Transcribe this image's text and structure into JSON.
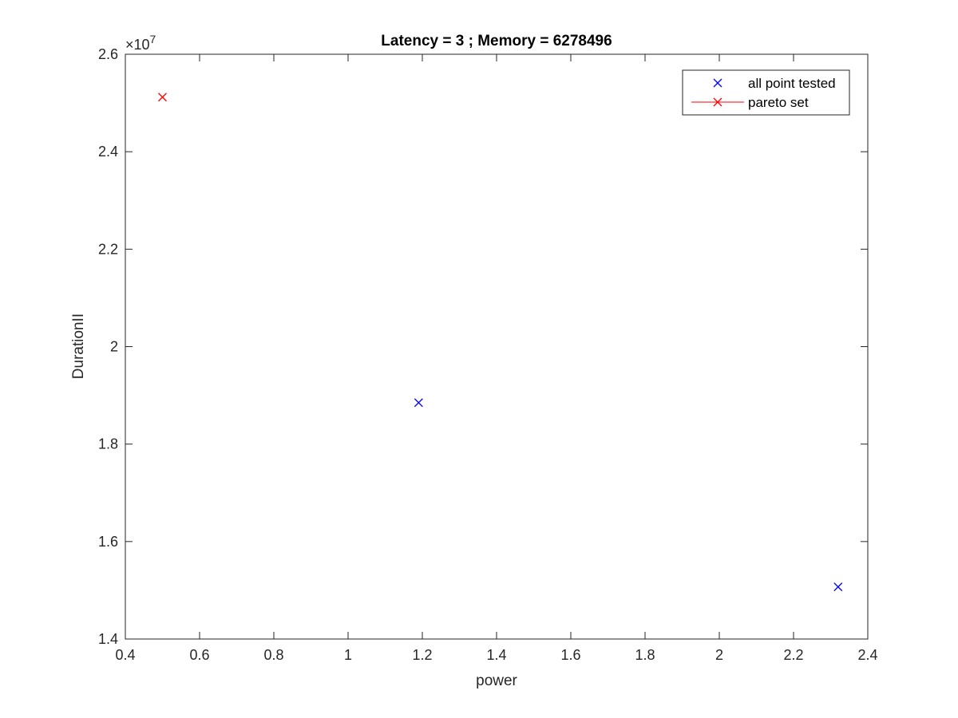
{
  "chart_data": {
    "type": "scatter",
    "title": "Latency = 3 ; Memory = 6278496",
    "xlabel": "power",
    "ylabel": "DurationII",
    "xlim": [
      0.4,
      2.4
    ],
    "ylim": [
      14000000,
      26000000
    ],
    "xticks": [
      0.4,
      0.6,
      0.8,
      1,
      1.2,
      1.4,
      1.6,
      1.8,
      2,
      2.2,
      2.4
    ],
    "xtick_labels": [
      "0.4",
      "0.6",
      "0.8",
      "1",
      "1.2",
      "1.4",
      "1.6",
      "1.8",
      "2",
      "2.2",
      "2.4"
    ],
    "yticks": [
      14000000,
      16000000,
      18000000,
      20000000,
      22000000,
      24000000,
      26000000
    ],
    "ytick_labels": [
      "1.4",
      "1.6",
      "1.8",
      "2",
      "2.2",
      "2.4",
      "2.6"
    ],
    "y_exponent": {
      "base": "×10",
      "power": "7"
    },
    "grid": false,
    "legend_position": "top-right",
    "series": [
      {
        "name": "all point tested",
        "color": "#0000ff",
        "marker": "x",
        "line": false,
        "points": [
          {
            "x": 1.19,
            "y": 18850000
          },
          {
            "x": 2.32,
            "y": 15070000
          }
        ]
      },
      {
        "name": "pareto set",
        "color": "#ff0000",
        "marker": "x",
        "line": true,
        "points": [
          {
            "x": 0.5,
            "y": 25120000
          }
        ]
      }
    ]
  }
}
